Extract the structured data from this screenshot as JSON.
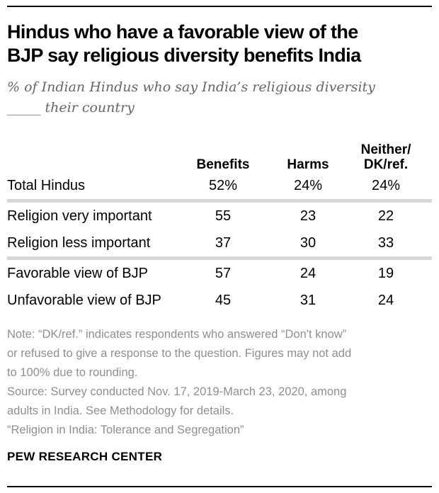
{
  "colors": {
    "rule_black": "#000000",
    "title_black": "#000000",
    "subtitle_gray": "#666666",
    "note_gray": "#8f8f8f",
    "divider_gray": "#d6d6d6"
  },
  "header": {
    "title_lines": [
      "Hindus who have a favorable view of the",
      "BJP say religious diversity benefits India"
    ],
    "subtitle_lines": [
      "% of Indian Hindus who say India’s religious diversity",
      "_____ their country"
    ]
  },
  "table": {
    "column_headers": [
      {
        "id": "benefits",
        "line1": "",
        "line2": "Benefits"
      },
      {
        "id": "harms",
        "line1": "",
        "line2": "Harms"
      },
      {
        "id": "neither-dk-ref",
        "line1": "Neither/",
        "line2": "DK/ref."
      }
    ],
    "rows": [
      {
        "label": "Total Hindus",
        "values": [
          "52%",
          "24%",
          "24%"
        ],
        "divider_after": true
      },
      {
        "label": "Religion very important",
        "values": [
          "55",
          "23",
          "22"
        ],
        "divider_after": false
      },
      {
        "label": "Religion less important",
        "values": [
          "37",
          "30",
          "33"
        ],
        "divider_after": true
      },
      {
        "label": "Favorable view of BJP",
        "values": [
          "57",
          "24",
          "19"
        ],
        "divider_after": false
      },
      {
        "label": "Unfavorable view of BJP",
        "values": [
          "45",
          "31",
          "24"
        ],
        "divider_after": false
      }
    ]
  },
  "notes": {
    "lines": [
      "Note: “DK/ref.” indicates respondents who answered “Don't know”",
      "or refused to give a response to the question. Figures may not add",
      "to 100% due to rounding.",
      "Source: Survey conducted Nov. 17, 2019-March 23, 2020, among",
      "adults in India. See Methodology for details.",
      "“Religion in India: Tolerance and Segregation”"
    ]
  },
  "footer": {
    "brand": "PEW RESEARCH CENTER"
  },
  "chart_data": {
    "type": "table",
    "title": "Hindus who have a favorable view of the BJP say religious diversity benefits India",
    "subtitle": "% of Indian Hindus who say India's religious diversity _____ their country",
    "columns": [
      "Benefits",
      "Harms",
      "Neither/DK/ref."
    ],
    "unit": "%",
    "rows": [
      {
        "label": "Total Hindus",
        "values": [
          52,
          24,
          24
        ]
      },
      {
        "label": "Religion very important",
        "values": [
          55,
          23,
          22
        ]
      },
      {
        "label": "Religion less important",
        "values": [
          37,
          30,
          33
        ]
      },
      {
        "label": "Favorable view of BJP",
        "values": [
          57,
          24,
          19
        ]
      },
      {
        "label": "Unfavorable view of BJP",
        "values": [
          45,
          31,
          24
        ]
      }
    ],
    "source": "Survey conducted Nov. 17, 2019-March 23, 2020, among adults in India. See Methodology for details.",
    "report": "Religion in India: Tolerance and Segregation"
  }
}
